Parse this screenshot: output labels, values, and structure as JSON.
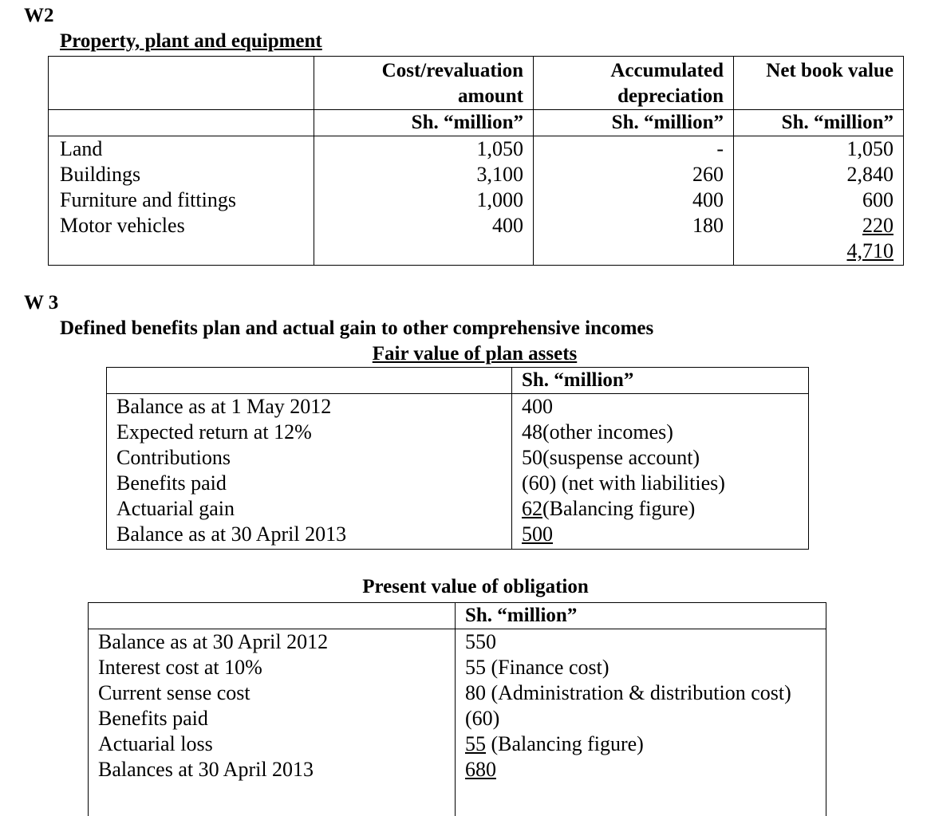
{
  "w2": {
    "label": "W2",
    "title": "Property, plant and equipment",
    "header": [
      "Cost/revaluation amount",
      "Accumulated depreciation",
      "Net book value"
    ],
    "units": [
      "Sh. “million”",
      "Sh. “million”",
      "Sh. “million”"
    ],
    "rows": [
      {
        "cells": [
          "Land",
          "1,050",
          "-",
          "1,050"
        ],
        "underlined": false
      },
      {
        "cells": [
          "Buildings",
          "3,100",
          "260",
          "2,840"
        ],
        "underlined": false
      },
      {
        "cells": [
          "Furniture and fittings",
          "1,000",
          "400",
          "600"
        ],
        "underlined": false
      },
      {
        "cells": [
          "Motor vehicles",
          "400",
          "180",
          "220"
        ],
        "underlined": true
      }
    ],
    "total": "4,710"
  },
  "w3": {
    "label": "W 3",
    "title": "Defined benefits plan and actual gain to other comprehensive incomes",
    "assets": {
      "title": "Fair value of plan assets",
      "unit": "Sh. “million”",
      "rows": [
        {
          "label": "Balance as at 1 May 2012",
          "value": "400",
          "note": "",
          "underlined": false
        },
        {
          "label": "Expected return at 12%",
          "value": "48",
          "note": "(other incomes)",
          "underlined": false
        },
        {
          "label": "Contributions",
          "value": "50",
          "note": "(suspense account)",
          "underlined": false
        },
        {
          "label": "Benefits paid",
          "value": "(60)",
          "note": " (net with liabilities)",
          "underlined": false
        },
        {
          "label": "Actuarial gain",
          "value": "62",
          "note": "(Balancing figure)",
          "underlined": true
        },
        {
          "label": "Balance as at 30 April 2013",
          "value": "500",
          "note": "",
          "underlined": true
        }
      ]
    },
    "obligation": {
      "title": "Present value of obligation",
      "unit": "Sh. “million”",
      "labels": [
        "Balance as at 30 April 2012",
        "Interest cost at 10%",
        "Current sense cost",
        "Benefits paid",
        "Actuarial loss",
        "Balances at 30 April 2013"
      ],
      "values": [
        {
          "value": "550",
          "note": "",
          "underlined": false
        },
        {
          "value": "55",
          "note": " (Finance cost)",
          "underlined": false
        },
        {
          "value": "80",
          "note": " (Administration & distribution cost)",
          "underlined": false
        },
        {
          "value": "(60)",
          "note": "",
          "underlined": false
        },
        {
          "value": "55",
          "note": " (Balancing figure)",
          "underlined": true
        },
        {
          "value": "680",
          "note": "",
          "underlined": true
        }
      ]
    }
  }
}
